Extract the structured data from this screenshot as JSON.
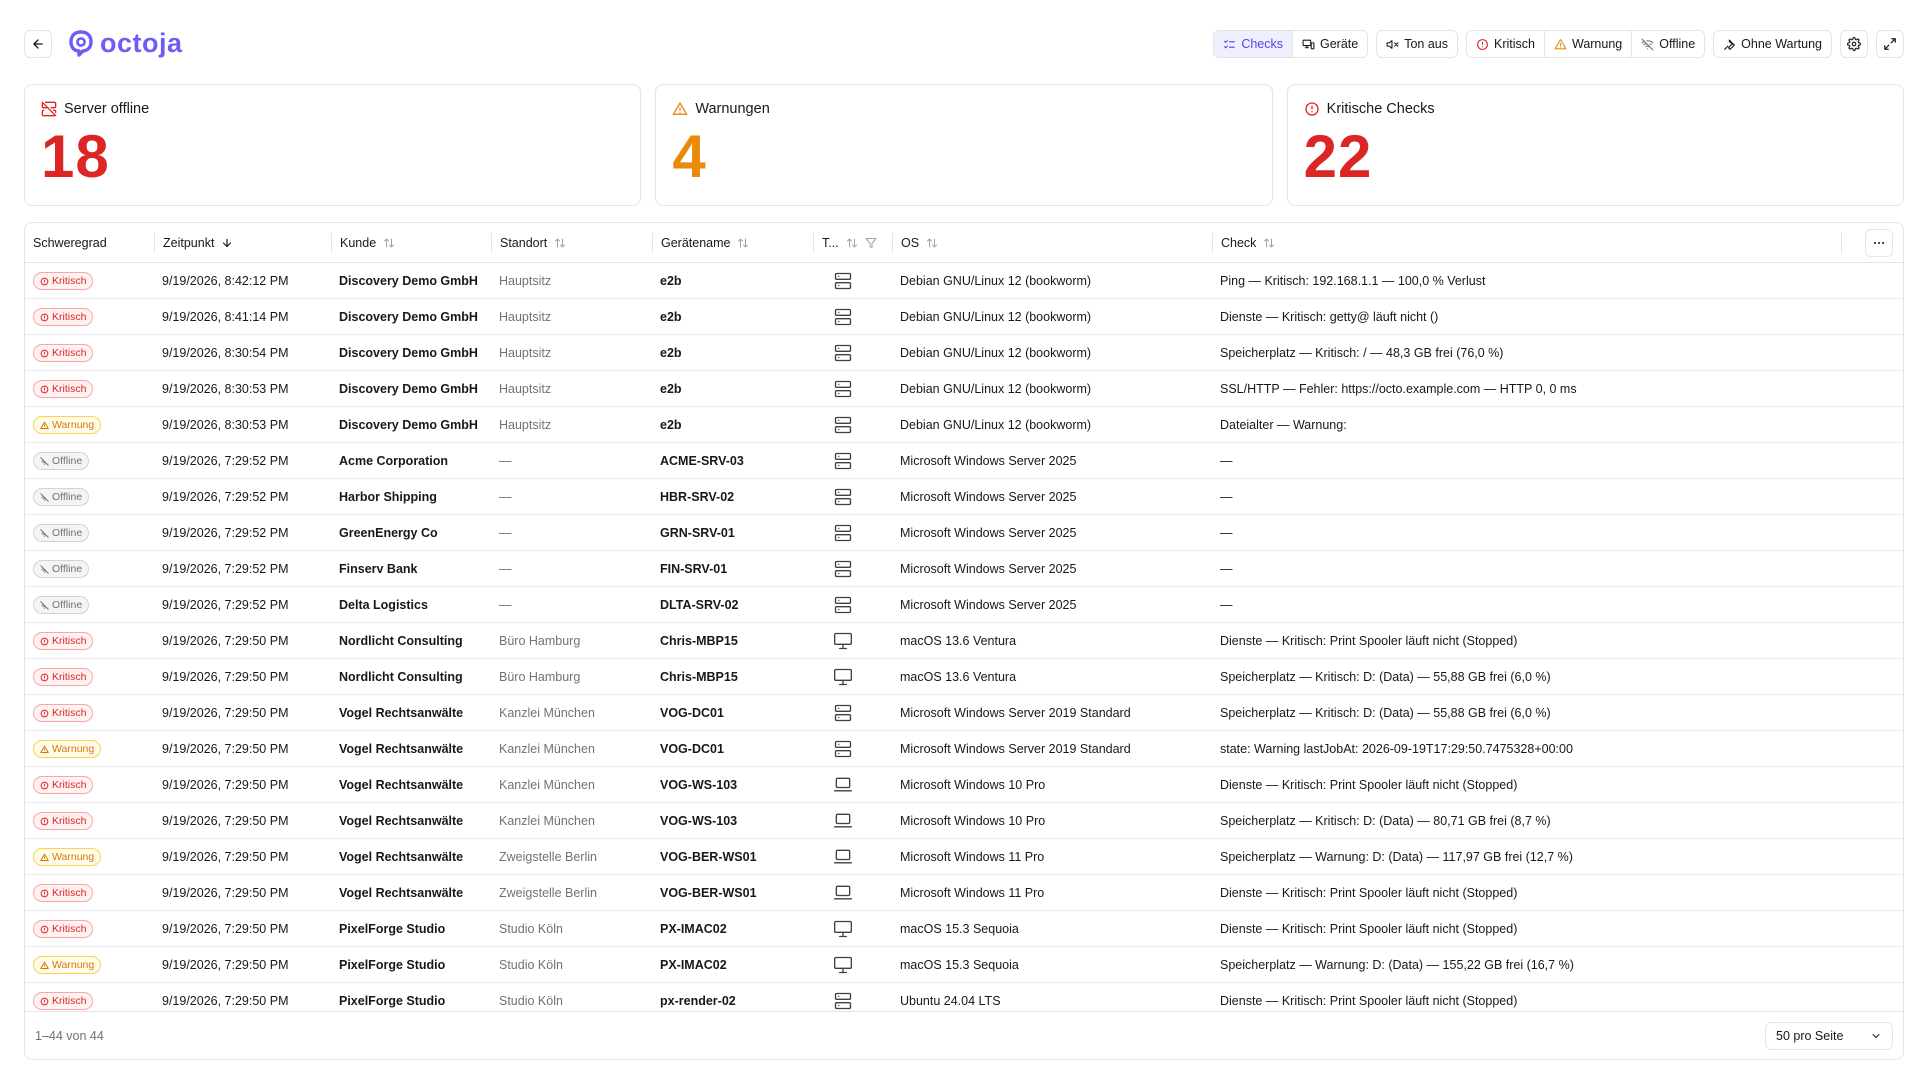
{
  "header": {
    "logo_text": "octoja",
    "toolbar": {
      "checks_label": "Checks",
      "geraete_label": "Geräte",
      "ton_aus_label": "Ton aus",
      "kritisch_label": "Kritisch",
      "warnung_label": "Warnung",
      "offline_label": "Offline",
      "ohne_wartung_label": "Ohne Wartung"
    }
  },
  "stats": [
    {
      "label": "Server offline",
      "value": "18",
      "icon": "server-off-icon",
      "color": "#dc2626"
    },
    {
      "label": "Warnungen",
      "value": "4",
      "icon": "warning-triangle-icon",
      "color": "#ea8a0b"
    },
    {
      "label": "Kritische Checks",
      "value": "22",
      "icon": "alert-circle-icon",
      "color": "#dc2626"
    }
  ],
  "table": {
    "columns": {
      "schweregrad": "Schweregrad",
      "zeitpunkt": "Zeitpunkt",
      "kunde": "Kunde",
      "standort": "Standort",
      "geraetename": "Gerätename",
      "typ": "T...",
      "os": "OS",
      "check": "Check"
    },
    "severity_labels": {
      "kritisch": "Kritisch",
      "warnung": "Warnung",
      "offline": "Offline"
    },
    "rows": [
      {
        "sev": "kritisch",
        "time": "9/19/2026, 8:42:12 PM",
        "kunde": "Discovery Demo GmbH",
        "standort": "Hauptsitz",
        "geraet": "e2b",
        "typ": "server",
        "os": "Debian GNU/Linux 12 (bookworm)",
        "check": "Ping — Kritisch: 192.168.1.1 — 100,0 % Verlust"
      },
      {
        "sev": "kritisch",
        "time": "9/19/2026, 8:41:14 PM",
        "kunde": "Discovery Demo GmbH",
        "standort": "Hauptsitz",
        "geraet": "e2b",
        "typ": "server",
        "os": "Debian GNU/Linux 12 (bookworm)",
        "check": "Dienste — Kritisch: getty@ läuft nicht ()"
      },
      {
        "sev": "kritisch",
        "time": "9/19/2026, 8:30:54 PM",
        "kunde": "Discovery Demo GmbH",
        "standort": "Hauptsitz",
        "geraet": "e2b",
        "typ": "server",
        "os": "Debian GNU/Linux 12 (bookworm)",
        "check": "Speicherplatz — Kritisch: / — 48,3 GB frei (76,0 %)"
      },
      {
        "sev": "kritisch",
        "time": "9/19/2026, 8:30:53 PM",
        "kunde": "Discovery Demo GmbH",
        "standort": "Hauptsitz",
        "geraet": "e2b",
        "typ": "server",
        "os": "Debian GNU/Linux 12 (bookworm)",
        "check": "SSL/HTTP — Fehler: https://octo.example.com — HTTP 0, 0 ms"
      },
      {
        "sev": "warnung",
        "time": "9/19/2026, 8:30:53 PM",
        "kunde": "Discovery Demo GmbH",
        "standort": "Hauptsitz",
        "geraet": "e2b",
        "typ": "server",
        "os": "Debian GNU/Linux 12 (bookworm)",
        "check": "Dateialter — Warnung:"
      },
      {
        "sev": "offline",
        "time": "9/19/2026, 7:29:52 PM",
        "kunde": "Acme Corporation",
        "standort": "—",
        "geraet": "ACME-SRV-03",
        "typ": "server",
        "os": "Microsoft Windows Server 2025",
        "check": "—"
      },
      {
        "sev": "offline",
        "time": "9/19/2026, 7:29:52 PM",
        "kunde": "Harbor Shipping",
        "standort": "—",
        "geraet": "HBR-SRV-02",
        "typ": "server",
        "os": "Microsoft Windows Server 2025",
        "check": "—"
      },
      {
        "sev": "offline",
        "time": "9/19/2026, 7:29:52 PM",
        "kunde": "GreenEnergy Co",
        "standort": "—",
        "geraet": "GRN-SRV-01",
        "typ": "server",
        "os": "Microsoft Windows Server 2025",
        "check": "—"
      },
      {
        "sev": "offline",
        "time": "9/19/2026, 7:29:52 PM",
        "kunde": "Finserv Bank",
        "standort": "—",
        "geraet": "FIN-SRV-01",
        "typ": "server",
        "os": "Microsoft Windows Server 2025",
        "check": "—"
      },
      {
        "sev": "offline",
        "time": "9/19/2026, 7:29:52 PM",
        "kunde": "Delta Logistics",
        "standort": "—",
        "geraet": "DLTA-SRV-02",
        "typ": "server",
        "os": "Microsoft Windows Server 2025",
        "check": "—"
      },
      {
        "sev": "kritisch",
        "time": "9/19/2026, 7:29:50 PM",
        "kunde": "Nordlicht Consulting",
        "standort": "Büro Hamburg",
        "geraet": "Chris-MBP15",
        "typ": "desktop",
        "os": "macOS 13.6 Ventura",
        "check": "Dienste — Kritisch: Print Spooler läuft nicht (Stopped)"
      },
      {
        "sev": "kritisch",
        "time": "9/19/2026, 7:29:50 PM",
        "kunde": "Nordlicht Consulting",
        "standort": "Büro Hamburg",
        "geraet": "Chris-MBP15",
        "typ": "desktop",
        "os": "macOS 13.6 Ventura",
        "check": "Speicherplatz — Kritisch: D: (Data) — 55,88 GB frei (6,0 %)"
      },
      {
        "sev": "kritisch",
        "time": "9/19/2026, 7:29:50 PM",
        "kunde": "Vogel Rechtsanwälte",
        "standort": "Kanzlei München",
        "geraet": "VOG-DC01",
        "typ": "server",
        "os": "Microsoft Windows Server 2019 Standard",
        "check": "Speicherplatz — Kritisch: D: (Data) — 55,88 GB frei (6,0 %)"
      },
      {
        "sev": "warnung",
        "time": "9/19/2026, 7:29:50 PM",
        "kunde": "Vogel Rechtsanwälte",
        "standort": "Kanzlei München",
        "geraet": "VOG-DC01",
        "typ": "server",
        "os": "Microsoft Windows Server 2019 Standard",
        "check": "state: Warning lastJobAt: 2026-09-19T17:29:50.7475328+00:00"
      },
      {
        "sev": "kritisch",
        "time": "9/19/2026, 7:29:50 PM",
        "kunde": "Vogel Rechtsanwälte",
        "standort": "Kanzlei München",
        "geraet": "VOG-WS-103",
        "typ": "laptop",
        "os": "Microsoft Windows 10 Pro",
        "check": "Dienste — Kritisch: Print Spooler läuft nicht (Stopped)"
      },
      {
        "sev": "kritisch",
        "time": "9/19/2026, 7:29:50 PM",
        "kunde": "Vogel Rechtsanwälte",
        "standort": "Kanzlei München",
        "geraet": "VOG-WS-103",
        "typ": "laptop",
        "os": "Microsoft Windows 10 Pro",
        "check": "Speicherplatz — Kritisch: D: (Data) — 80,71 GB frei (8,7 %)"
      },
      {
        "sev": "warnung",
        "time": "9/19/2026, 7:29:50 PM",
        "kunde": "Vogel Rechtsanwälte",
        "standort": "Zweigstelle Berlin",
        "geraet": "VOG-BER-WS01",
        "typ": "laptop",
        "os": "Microsoft Windows 11 Pro",
        "check": "Speicherplatz — Warnung: D: (Data) — 117,97 GB frei (12,7 %)"
      },
      {
        "sev": "kritisch",
        "time": "9/19/2026, 7:29:50 PM",
        "kunde": "Vogel Rechtsanwälte",
        "standort": "Zweigstelle Berlin",
        "geraet": "VOG-BER-WS01",
        "typ": "laptop",
        "os": "Microsoft Windows 11 Pro",
        "check": "Dienste — Kritisch: Print Spooler läuft nicht (Stopped)"
      },
      {
        "sev": "kritisch",
        "time": "9/19/2026, 7:29:50 PM",
        "kunde": "PixelForge Studio",
        "standort": "Studio Köln",
        "geraet": "PX-IMAC02",
        "typ": "desktop",
        "os": "macOS 15.3 Sequoia",
        "check": "Dienste — Kritisch: Print Spooler läuft nicht (Stopped)"
      },
      {
        "sev": "warnung",
        "time": "9/19/2026, 7:29:50 PM",
        "kunde": "PixelForge Studio",
        "standort": "Studio Köln",
        "geraet": "PX-IMAC02",
        "typ": "desktop",
        "os": "macOS 15.3 Sequoia",
        "check": "Speicherplatz — Warnung: D: (Data) — 155,22 GB frei (16,7 %)"
      },
      {
        "sev": "kritisch",
        "time": "9/19/2026, 7:29:50 PM",
        "kunde": "PixelForge Studio",
        "standort": "Studio Köln",
        "geraet": "px-render-02",
        "typ": "server",
        "os": "Ubuntu 24.04 LTS",
        "check": "Dienste — Kritisch: Print Spooler läuft nicht (Stopped)"
      }
    ],
    "footer": {
      "range": "1–44 von 44",
      "per_page": "50 pro Seite"
    }
  },
  "colors": {
    "accent": "#6d5cf6",
    "critical": "#dc2626",
    "warning": "#ea8a0b",
    "offline": "#71717a"
  }
}
